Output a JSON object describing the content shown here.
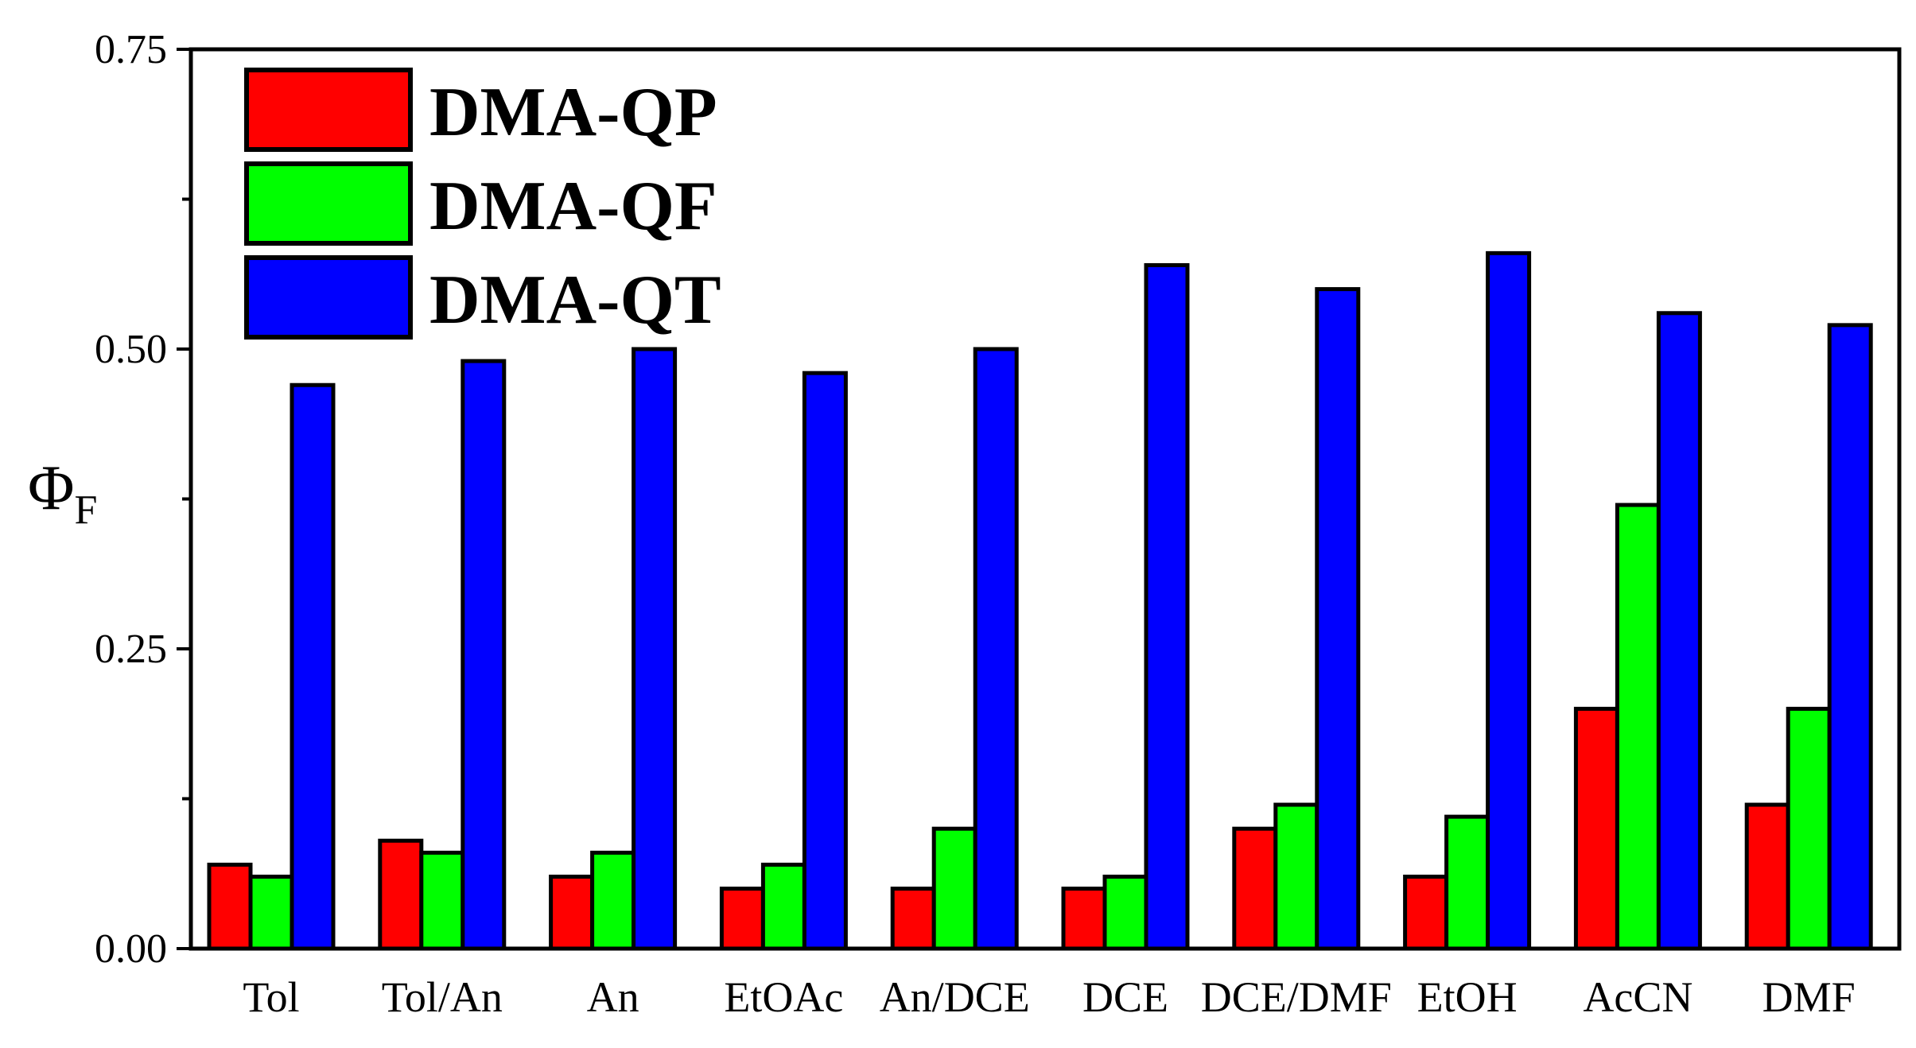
{
  "chart_data": {
    "type": "bar",
    "title": "",
    "xlabel": "",
    "ylabel": "Φ",
    "ylabel_subscript": "F",
    "ylim": [
      0,
      0.75
    ],
    "yticks": [
      0.0,
      0.25,
      0.5,
      0.75
    ],
    "ytick_labels": [
      "0.00",
      "0.25",
      "0.50",
      "0.75"
    ],
    "grid": false,
    "legend_position": "top-left",
    "categories": [
      "Tol",
      "Tol/An",
      "An",
      "EtOAc",
      "An/DCE",
      "DCE",
      "DCE/DMF",
      "EtOH",
      "AcCN",
      "DMF"
    ],
    "series": [
      {
        "name": "DMA-QP",
        "color": "#ff0000",
        "values": [
          0.07,
          0.09,
          0.06,
          0.05,
          0.05,
          0.05,
          0.1,
          0.06,
          0.2,
          0.12
        ]
      },
      {
        "name": "DMA-QF",
        "color": "#00ff00",
        "values": [
          0.06,
          0.08,
          0.08,
          0.07,
          0.1,
          0.06,
          0.12,
          0.11,
          0.37,
          0.2
        ]
      },
      {
        "name": "DMA-QT",
        "color": "#0000ff",
        "values": [
          0.47,
          0.49,
          0.5,
          0.48,
          0.5,
          0.57,
          0.55,
          0.58,
          0.53,
          0.52
        ]
      }
    ]
  }
}
